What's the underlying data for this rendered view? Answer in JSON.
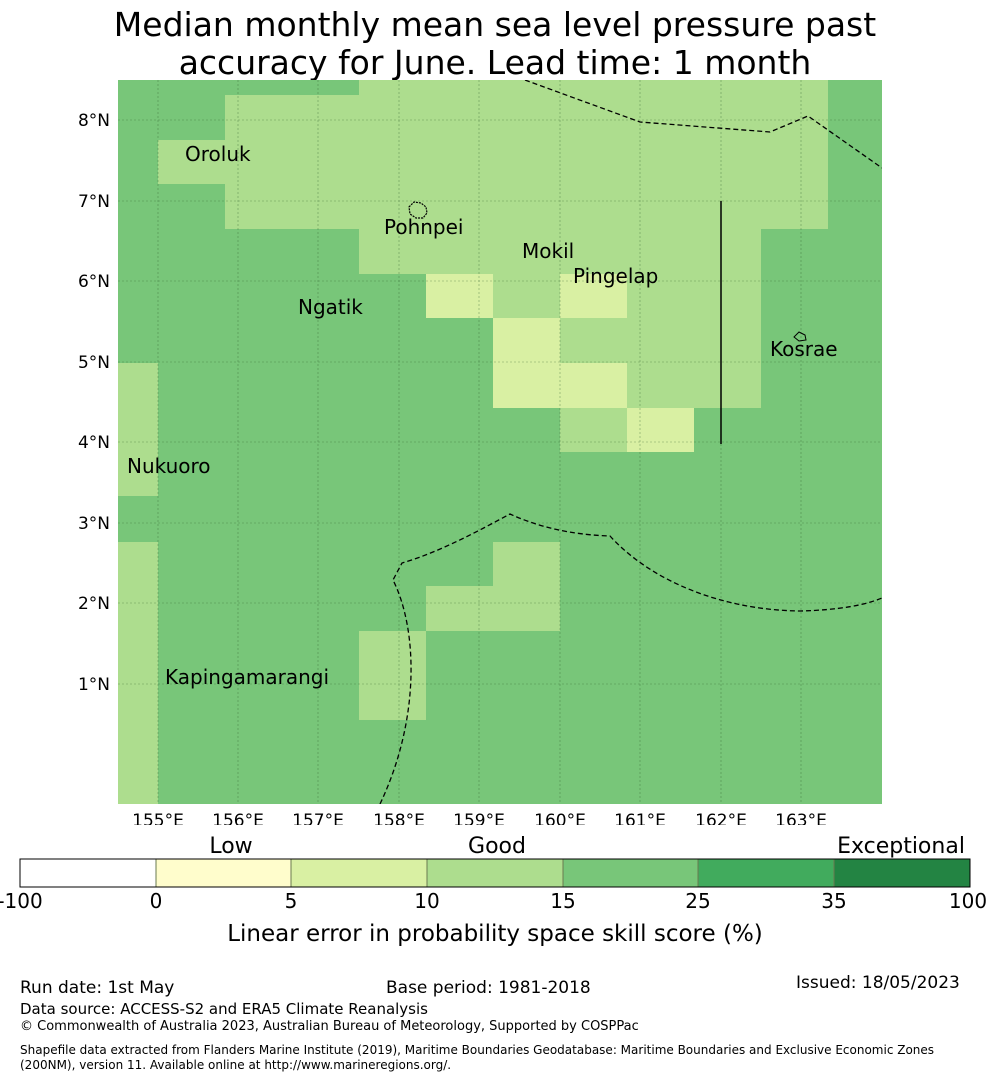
{
  "title_line1": "Median monthly mean sea level pressure past",
  "title_line2": "accuracy for June. Lead time: 1 month",
  "colors": {
    "c1": "#fffdcc",
    "c2": "#d9f0a3",
    "c3": "#addd8e",
    "c4": "#78c679",
    "c5": "#41ab5d",
    "c6": "#238443"
  },
  "map": {
    "lon_labels": [
      "155°E",
      "156°E",
      "157°E",
      "158°E",
      "159°E",
      "160°E",
      "161°E",
      "162°E",
      "163°E"
    ],
    "lat_labels": [
      "8°N",
      "7°N",
      "6°N",
      "5°N",
      "4°N",
      "3°N",
      "2°N",
      "1°N"
    ],
    "places": [
      "Oroluk",
      "Pohnpei",
      "Mokil",
      "Pingelap",
      "Ngatik",
      "Kosrae",
      "Nukuoro",
      "Kapingamarangi"
    ]
  },
  "colorbar": {
    "categories": [
      "Low",
      "Good",
      "Exceptional"
    ],
    "ticks": [
      "-100",
      "0",
      "5",
      "10",
      "15",
      "25",
      "35",
      "100"
    ],
    "label": "Linear error in probability space skill score (%)"
  },
  "footer": {
    "run_date": "Run date: 1st May",
    "base_period": "Base period: 1981-2018",
    "issued": "Issued: 18/05/2023",
    "data_source": "Data source: ACCESS-S2 and ERA5 Climate Reanalysis",
    "copyright": "© Commonwealth of Australia 2023, Australian Bureau of Meteorology, Supported by COSPPac",
    "shapefile": "Shapefile data extracted from Flanders Marine Institute (2019), Maritime Boundaries Geodatabase: Maritime Boundaries and Exclusive Economic Zones (200NM), version 11. Available online at http://www.marineregions.org/."
  }
}
